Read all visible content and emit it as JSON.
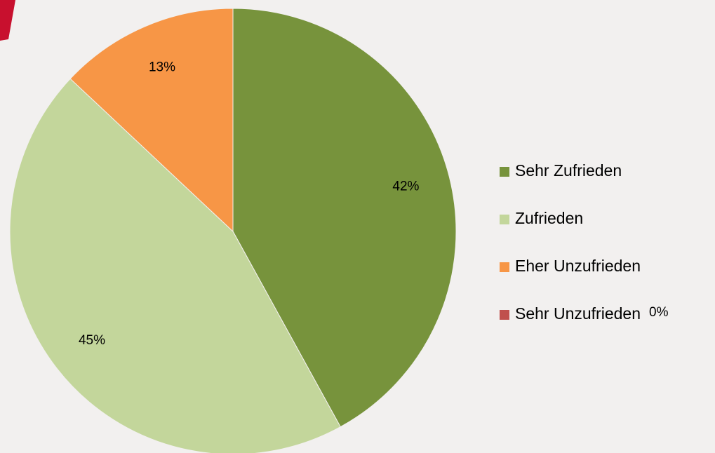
{
  "chart_data": {
    "type": "pie",
    "categories": [
      "Sehr Zufrieden",
      "Zufrieden",
      "Eher Unzufrieden",
      "Sehr Unzufrieden"
    ],
    "values": [
      42,
      45,
      13,
      0
    ],
    "value_labels": [
      "42%",
      "45%",
      "13%",
      "0%"
    ],
    "colors": [
      "#77933c",
      "#c3d69b",
      "#f79646",
      "#c0504d"
    ],
    "legend": "right"
  }
}
